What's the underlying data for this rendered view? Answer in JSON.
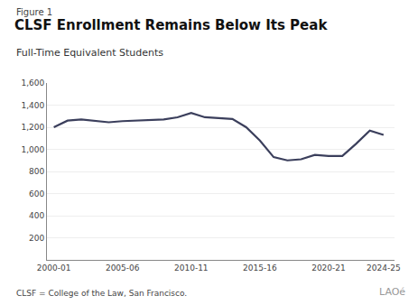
{
  "chart_data": {
    "type": "line",
    "title": "CLSF Enrollment Remains Below Its Peak",
    "subtitle": "Full-Time Equivalent Students",
    "annotations": [
      "Figure 1",
      "CLSF = College of the Law, San Francisco.",
      "LAOé"
    ],
    "color": "#3b3f5c",
    "x": [
      2000,
      2001,
      2002,
      2003,
      2004,
      2005,
      2006,
      2007,
      2008,
      2009,
      2010,
      2011,
      2012,
      2013,
      2014,
      2015,
      2016,
      2017,
      2018,
      2019,
      2020,
      2021,
      2022,
      2023,
      2024
    ],
    "values": [
      1200,
      1260,
      1270,
      1255,
      1245,
      1255,
      1260,
      1265,
      1270,
      1290,
      1330,
      1290,
      1280,
      1275,
      1200,
      1080,
      930,
      900,
      910,
      950,
      940,
      940,
      1050,
      1170,
      1130
    ],
    "xlim": [
      1999.5,
      2024.8
    ],
    "xticks": [
      {
        "value": 2000,
        "label": "2000-01"
      },
      {
        "value": 2005,
        "label": "2005-06"
      },
      {
        "value": 2010,
        "label": "2010-11"
      },
      {
        "value": 2015,
        "label": "2015-16"
      },
      {
        "value": 2020,
        "label": "2020-21"
      },
      {
        "value": 2024,
        "label": "2024-25"
      }
    ],
    "ylim": [
      0,
      1600
    ],
    "yticks": [
      200,
      400,
      600,
      800,
      {
        "value": 1000,
        "label": "1,000"
      },
      {
        "value": 1200,
        "label": "1,200"
      },
      {
        "value": 1400,
        "label": "1,400"
      },
      {
        "value": 1600,
        "label": "1,600"
      }
    ],
    "grid": true
  }
}
